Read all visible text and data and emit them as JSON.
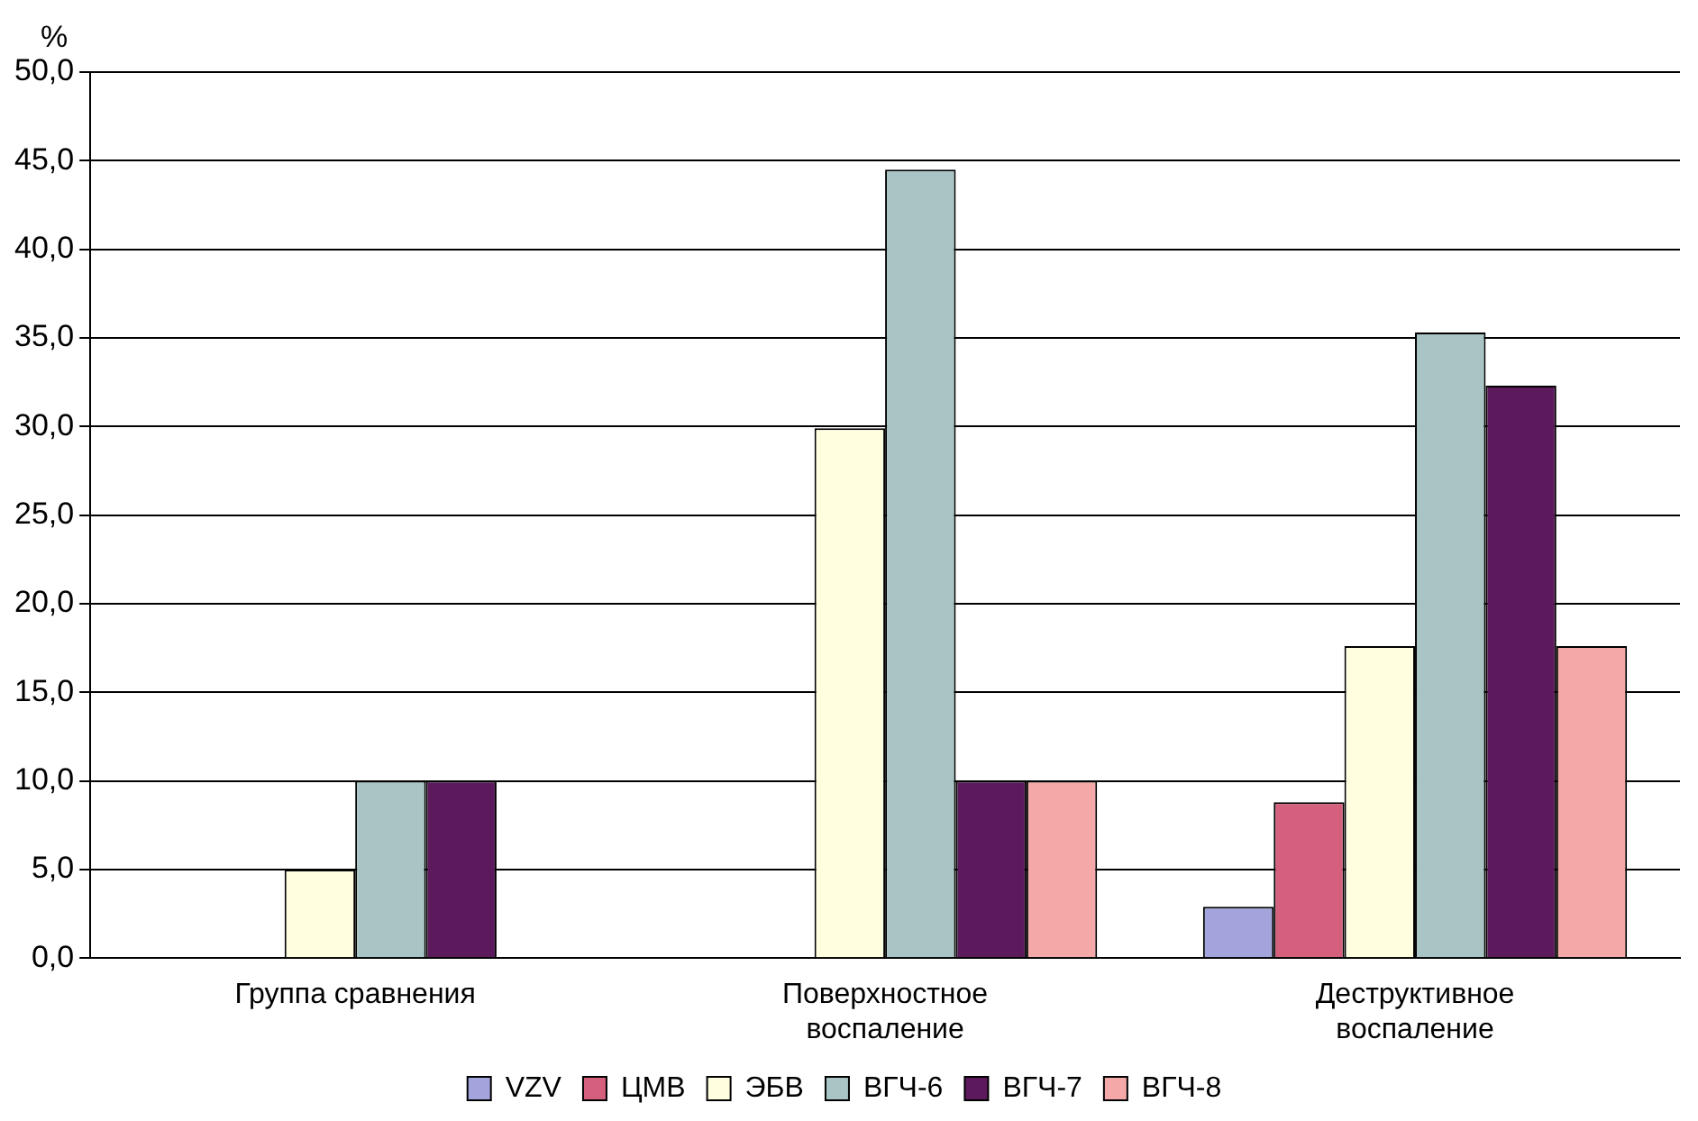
{
  "chart_data": {
    "type": "bar",
    "ylabel": "%",
    "categories": [
      "Группа сравнения",
      "Поверхностное\nвоспаление",
      "Деструктивное\nвоспаление"
    ],
    "series": [
      {
        "name": "VZV",
        "color": "#a4a4dc",
        "values": [
          null,
          null,
          2.9
        ]
      },
      {
        "name": "ЦМВ",
        "color": "#d4607e",
        "values": [
          null,
          null,
          8.8
        ]
      },
      {
        "name": "ЭБВ",
        "color": "#ffffe0",
        "values": [
          5.0,
          29.9,
          17.6
        ]
      },
      {
        "name": "ВГЧ-6",
        "color": "#a8c4c4",
        "values": [
          10.0,
          44.5,
          35.3
        ]
      },
      {
        "name": "ВГЧ-7",
        "color": "#5c1a5c",
        "values": [
          10.0,
          10.0,
          32.3
        ]
      },
      {
        "name": "ВГЧ-8",
        "color": "#f4a8a8",
        "values": [
          null,
          10.0,
          17.6
        ]
      }
    ],
    "ylim": [
      0,
      50
    ],
    "yticks": [
      {
        "value": 0,
        "label": "0,0"
      },
      {
        "value": 5,
        "label": "5,0"
      },
      {
        "value": 10,
        "label": "10,0"
      },
      {
        "value": 15,
        "label": "15,0"
      },
      {
        "value": 20,
        "label": "20,0"
      },
      {
        "value": 25,
        "label": "25,0"
      },
      {
        "value": 30,
        "label": "30,0"
      },
      {
        "value": 35,
        "label": "35,0"
      },
      {
        "value": 40,
        "label": "40,0"
      },
      {
        "value": 45,
        "label": "45,0"
      },
      {
        "value": 50,
        "label": "50,0"
      }
    ],
    "grid": "y",
    "legend": "bottom"
  }
}
